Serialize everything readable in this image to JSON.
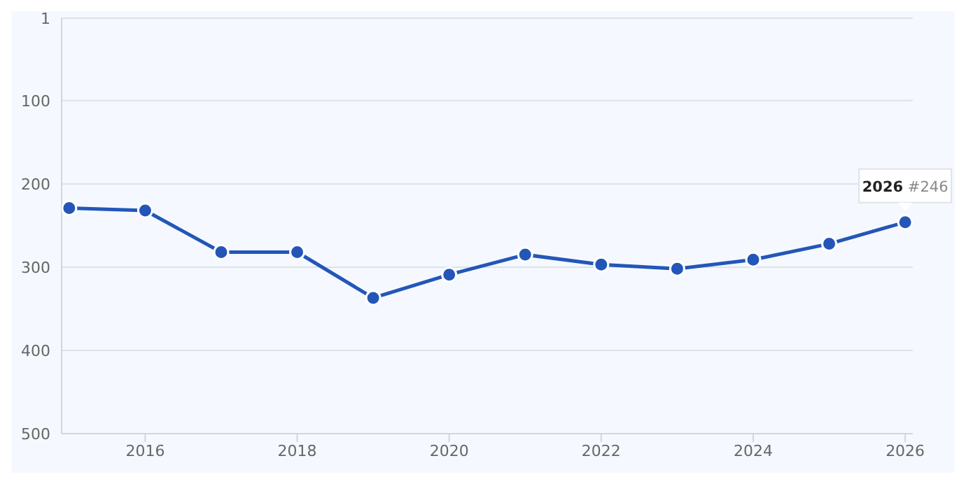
{
  "chart_data": {
    "type": "line",
    "x": [
      2015,
      2016,
      2017,
      2018,
      2019,
      2020,
      2021,
      2022,
      2023,
      2024,
      2025,
      2026
    ],
    "series": [
      {
        "color": "#2356b8",
        "values": [
          229,
          232,
          282,
          282,
          337,
          309,
          285,
          297,
          302,
          291,
          272,
          246
        ]
      }
    ],
    "xlim": [
      2014.9,
      2026.1
    ],
    "xticks": [
      2016,
      2018,
      2020,
      2022,
      2024,
      2026
    ],
    "ylim": [
      500,
      1
    ],
    "yticks": [
      1,
      100,
      200,
      300,
      400,
      500
    ],
    "grid": "y",
    "marker": "circle",
    "line_style": "solid",
    "annotations": [
      {
        "text": "2026 #246",
        "x": 2026,
        "y": 246
      }
    ]
  }
}
